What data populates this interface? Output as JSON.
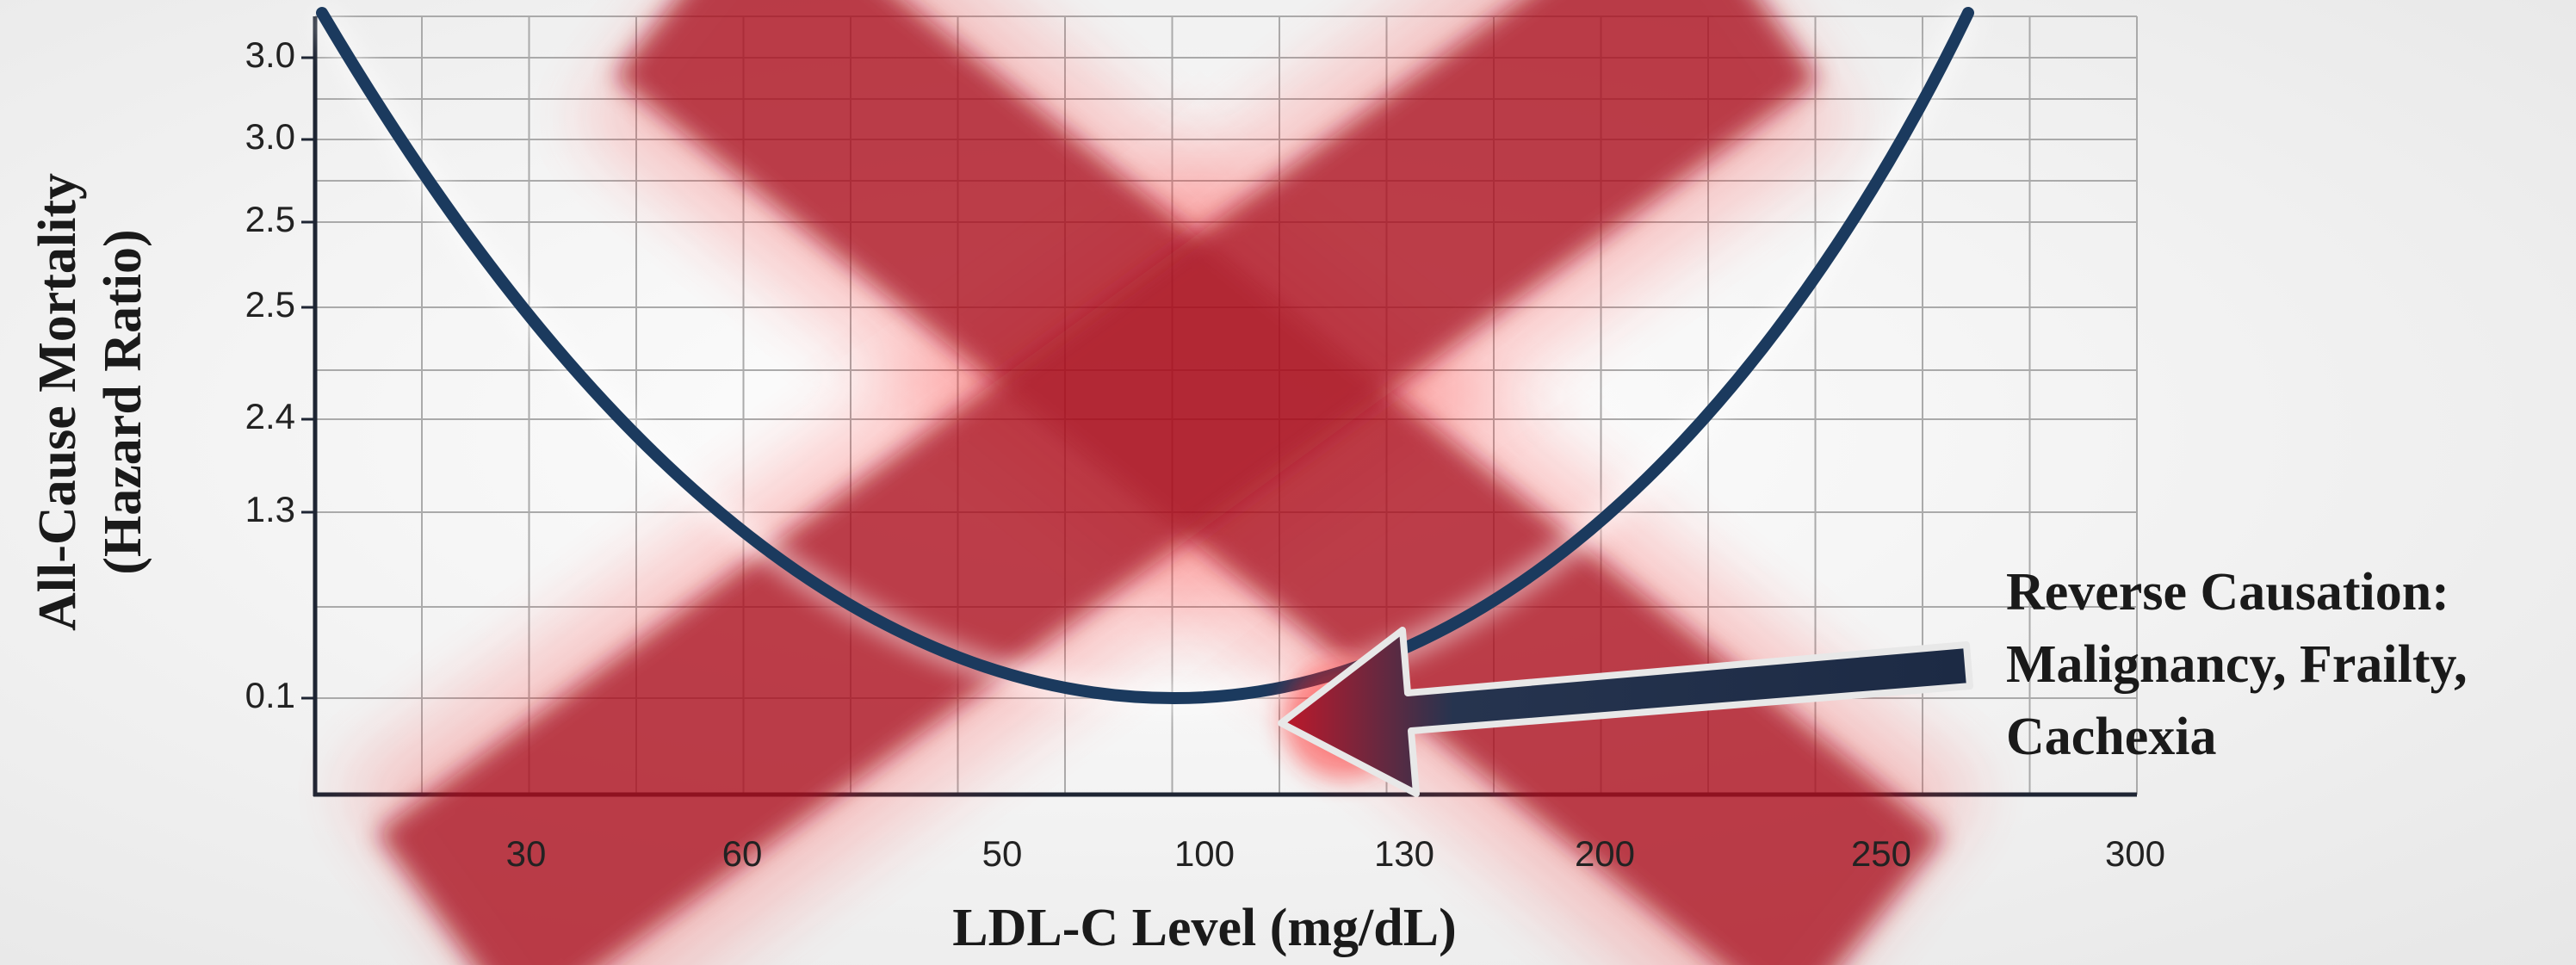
{
  "y_axis": {
    "label_lines": [
      "All-Cause Mortality",
      "(Hazard Ratio)"
    ],
    "ticks": [
      "3.0",
      "3.0",
      "2.5",
      "2.5",
      "2.4",
      "1.3",
      "0.1"
    ]
  },
  "x_axis": {
    "label": "LDL-C Level (mg/dL)",
    "ticks": [
      "30",
      "60",
      "50",
      "100",
      "130",
      "200",
      "250",
      "300"
    ]
  },
  "annotation": {
    "lines": [
      "Reverse Causation:",
      "Malignancy, Frailty,",
      "Cachexia"
    ]
  }
}
